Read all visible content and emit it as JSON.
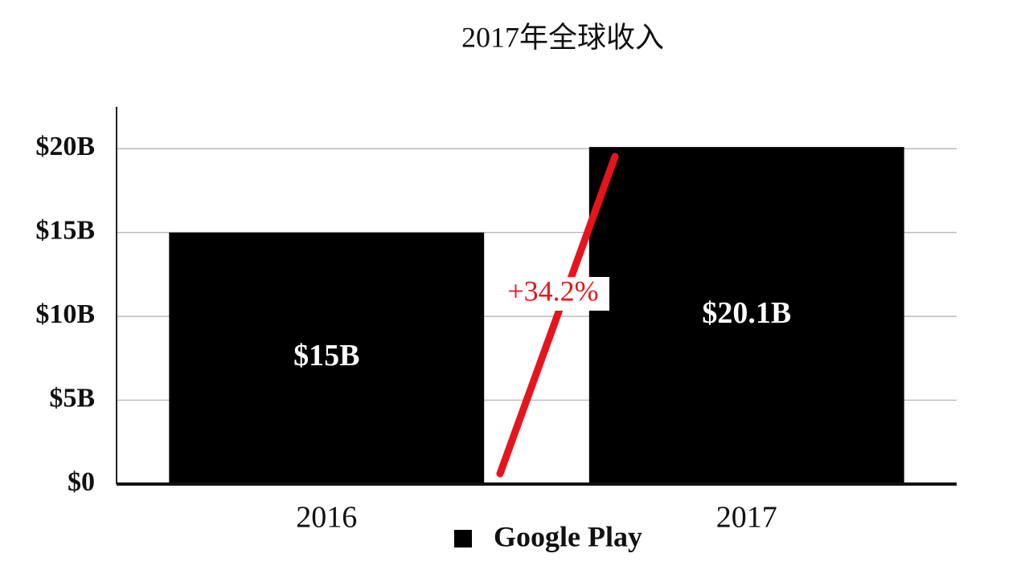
{
  "chart_data": {
    "type": "bar",
    "title": "2017年全球收入",
    "categories": [
      "2016",
      "2017"
    ],
    "series": [
      {
        "name": "Google Play",
        "color": "#000000",
        "values": [
          15,
          20.1
        ],
        "value_labels": [
          "$15B",
          "$20.1B"
        ]
      }
    ],
    "ylim": [
      0,
      22.5
    ],
    "yticks": [
      {
        "value": 0,
        "label": "$0"
      },
      {
        "value": 5,
        "label": "$5B"
      },
      {
        "value": 10,
        "label": "$10B"
      },
      {
        "value": 15,
        "label": "$15B"
      },
      {
        "value": 20,
        "label": "$20B"
      }
    ],
    "grid": true,
    "annotation": "+34.2%"
  }
}
